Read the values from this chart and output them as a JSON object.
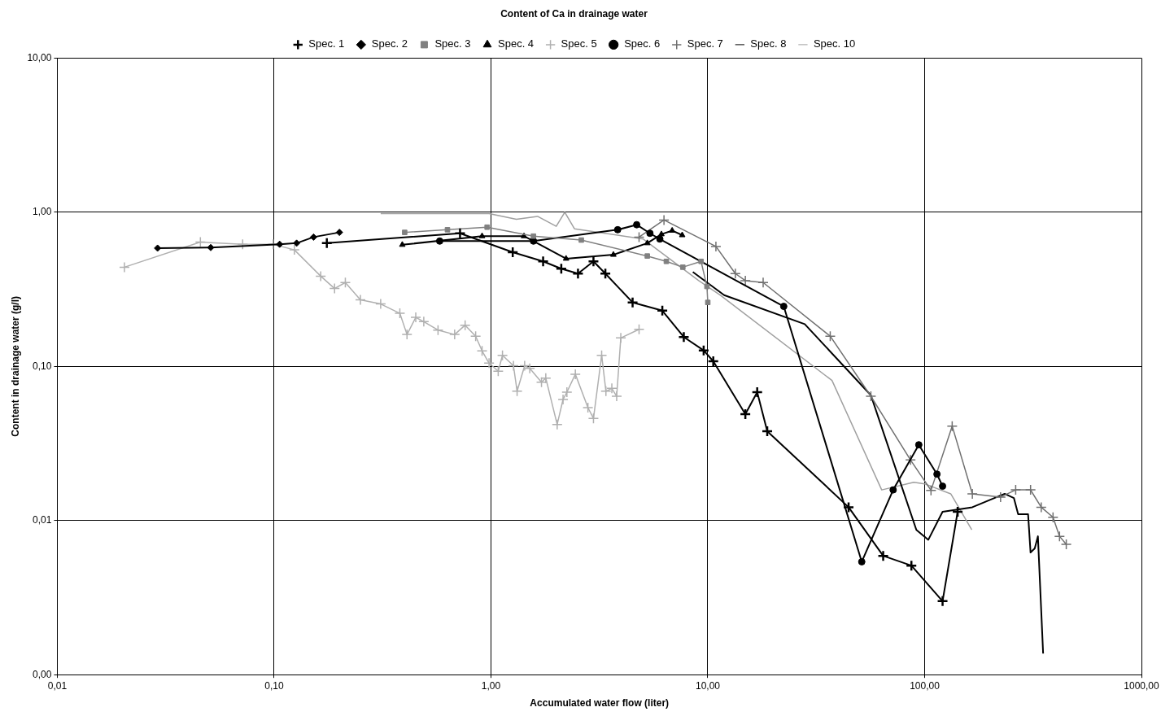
{
  "chart_data": {
    "type": "line",
    "title": "Content of Ca in drainage water",
    "xlabel": "Accumulated water flow (liter)",
    "ylabel": "Content in drainage water (g/l)",
    "log": "xy",
    "grid": true,
    "legend": "top",
    "xlim": [
      0.01,
      1000
    ],
    "ylim": [
      0.001,
      10
    ],
    "xticks": [
      {
        "value": 0.01,
        "label": "0,01"
      },
      {
        "value": 0.1,
        "label": "0,10"
      },
      {
        "value": 1,
        "label": "1,00"
      },
      {
        "value": 10,
        "label": "10,00"
      },
      {
        "value": 100,
        "label": "100,00"
      },
      {
        "value": 1000,
        "label": "1000,00"
      }
    ],
    "yticks": [
      {
        "value": 0.001,
        "label": "0,00"
      },
      {
        "value": 0.01,
        "label": "0,01"
      },
      {
        "value": 0.1,
        "label": "0,10"
      },
      {
        "value": 1,
        "label": "1,00"
      },
      {
        "value": 10,
        "label": "10,00"
      }
    ],
    "series": [
      {
        "name": "Spec. 1",
        "color": "#000000",
        "marker": "cross",
        "x": [
          0.175,
          0.72,
          1.26,
          1.74,
          2.11,
          2.52,
          2.97,
          3.37,
          4.5,
          6.17,
          7.75,
          9.57,
          10.6,
          14.9,
          16.9,
          18.8,
          44.6,
          64.4,
          86.9,
          121,
          142
        ],
        "values": [
          0.63,
          0.73,
          0.55,
          0.48,
          0.43,
          0.4,
          0.48,
          0.4,
          0.26,
          0.23,
          0.155,
          0.127,
          0.108,
          0.049,
          0.068,
          0.038,
          0.0122,
          0.0059,
          0.0051,
          0.003,
          0.0114
        ]
      },
      {
        "name": "Spec. 2",
        "color": "#000000",
        "marker": "diamond",
        "x": [
          0.029,
          0.051,
          0.106,
          0.127,
          0.152,
          0.2
        ],
        "values": [
          0.585,
          0.59,
          0.62,
          0.63,
          0.69,
          0.74
        ]
      },
      {
        "name": "Spec. 3",
        "color": "#808080",
        "marker": "square",
        "x": [
          0.4,
          0.63,
          0.96,
          1.57,
          2.61,
          5.26,
          6.44,
          7.67,
          9.31,
          9.91,
          10
        ],
        "values": [
          0.74,
          0.77,
          0.8,
          0.7,
          0.66,
          0.52,
          0.48,
          0.44,
          0.48,
          0.33,
          0.26
        ]
      },
      {
        "name": "Spec. 4",
        "color": "#000000",
        "marker": "triangle",
        "x": [
          0.39,
          0.91,
          1.42,
          2.22,
          3.67,
          5.26,
          6.11,
          6.85,
          7.62
        ],
        "values": [
          0.615,
          0.7,
          0.7,
          0.5,
          0.53,
          0.63,
          0.72,
          0.76,
          0.71
        ]
      },
      {
        "name": "Spec. 5",
        "color": "#b0b0b0",
        "marker": "cross",
        "x": [
          0.0204,
          0.0457,
          0.0716,
          0.099,
          0.124,
          0.164,
          0.19,
          0.213,
          0.25,
          0.31,
          0.38,
          0.41,
          0.45,
          0.49,
          0.57,
          0.68,
          0.76,
          0.85,
          0.91,
          0.98,
          1.08,
          1.13,
          1.27,
          1.32,
          1.43,
          1.51,
          1.71,
          1.79,
          2.02,
          2.15,
          2.24,
          2.45,
          2.8,
          2.97,
          3.24,
          3.39,
          3.61,
          3.8,
          3.97,
          4.82
        ],
        "values": [
          0.44,
          0.64,
          0.62,
          0.62,
          0.57,
          0.385,
          0.32,
          0.35,
          0.27,
          0.254,
          0.221,
          0.161,
          0.208,
          0.195,
          0.172,
          0.161,
          0.185,
          0.157,
          0.126,
          0.105,
          0.093,
          0.118,
          0.101,
          0.069,
          0.101,
          0.097,
          0.079,
          0.084,
          0.042,
          0.061,
          0.068,
          0.089,
          0.054,
          0.046,
          0.118,
          0.069,
          0.072,
          0.064,
          0.153,
          0.174
        ]
      },
      {
        "name": "Spec. 6",
        "color": "#000000",
        "marker": "circle",
        "x": [
          0.58,
          1.57,
          3.84,
          4.7,
          5.41,
          6.01,
          22.4,
          51.3,
          71.6,
          94,
          114,
          121
        ],
        "values": [
          0.65,
          0.65,
          0.77,
          0.83,
          0.73,
          0.67,
          0.245,
          0.0054,
          0.0158,
          0.031,
          0.02,
          0.0167
        ]
      },
      {
        "name": "Spec. 7",
        "color": "#707070",
        "marker": "cross",
        "x": [
          4.82,
          6.28,
          10.9,
          13.4,
          14.9,
          18,
          36.7,
          56.5,
          86.1,
          107,
          134,
          166,
          224,
          263,
          308,
          345,
          391,
          419,
          450
        ],
        "values": [
          0.69,
          0.89,
          0.6,
          0.4,
          0.36,
          0.35,
          0.157,
          0.064,
          0.0247,
          0.0157,
          0.041,
          0.0149,
          0.0142,
          0.0158,
          0.0158,
          0.0122,
          0.0105,
          0.0079,
          0.007
        ]
      },
      {
        "name": "Spec. 8",
        "color": "#000000",
        "marker": "none",
        "x": [
          8.53,
          11.9,
          28,
          56.5,
          91.6,
          104,
          121,
          166,
          234,
          258,
          270,
          300,
          308,
          322,
          333,
          352
        ],
        "values": [
          0.41,
          0.29,
          0.188,
          0.065,
          0.0087,
          0.0075,
          0.0114,
          0.0122,
          0.0149,
          0.014,
          0.011,
          0.011,
          0.0062,
          0.0066,
          0.0079,
          0.00137
        ]
      },
      {
        "name": "Spec. 10",
        "color": "#a0a0a0",
        "marker": "none",
        "x": [
          0.31,
          0.98,
          1.31,
          1.64,
          2,
          2.19,
          2.43,
          5.04,
          9.08,
          11.4,
          37.4,
          63.4,
          89.1,
          100,
          132,
          165
        ],
        "values": [
          0.98,
          0.98,
          0.9,
          0.94,
          0.81,
          1.0,
          0.78,
          0.67,
          0.36,
          0.29,
          0.081,
          0.0158,
          0.0177,
          0.0173,
          0.0149,
          0.0087
        ]
      }
    ]
  }
}
